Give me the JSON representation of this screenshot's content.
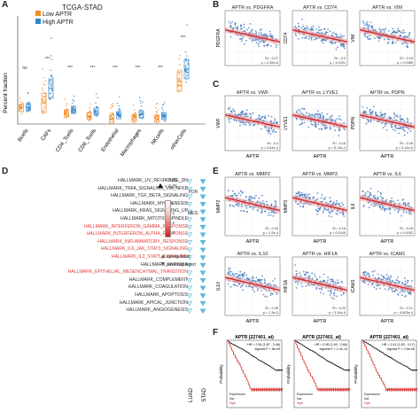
{
  "panel_labels": {
    "a": "A",
    "b": "B",
    "c": "C",
    "d": "D",
    "e": "E",
    "f": "F"
  },
  "panel_a": {
    "title": "TCGA-STAD",
    "legend": [
      {
        "label": "Low APTR",
        "color": "#f08a24"
      },
      {
        "label": "High APTR",
        "color": "#2f86c8"
      }
    ],
    "ylabel": "Percent fraction",
    "ns_label": "ns",
    "sig_label": "***",
    "categories": [
      "Bcells",
      "CAFs",
      "CD4_Tcells",
      "CD8_Tcells",
      "Endothelial",
      "Macrophages",
      "NKcells",
      "otherCells"
    ]
  },
  "panel_b": {
    "plots": [
      {
        "title": "APTR vs. PDGFRA",
        "ylabel": "PDGFRA",
        "stats": [
          "R= -0.27",
          "p = 2.35e-6"
        ]
      },
      {
        "title": "APTR vs. CD74",
        "ylabel": "CD74",
        "stats": [
          "R= -0.2",
          "p = 3.0291"
        ]
      },
      {
        "title": "APTR vs. VIM",
        "ylabel": "VIM",
        "stats": [
          "R= -0.18",
          "p = 0.0385"
        ]
      }
    ]
  },
  "panel_c": {
    "plots": [
      {
        "title": "APTR vs. VWF",
        "ylabel": "VWF",
        "stats": [
          "R= -0.2",
          "p = 3.64e-4"
        ]
      },
      {
        "title": "APTR vs. LYVE1",
        "ylabel": "LYVE1",
        "stats": [
          "R= -0.16",
          "p = 5.13e-4"
        ]
      },
      {
        "title": "APTR vs. PDPN",
        "ylabel": "PDPN",
        "stats": [
          "R= -0.26",
          "p = 0.14e-6"
        ]
      }
    ],
    "xlabel": "APTR"
  },
  "panel_d": {
    "gene_sets": [
      {
        "name": "HALLMARK_UV_RESPONSE_DN",
        "color": "dark"
      },
      {
        "name": "HALLMARK_TNFA_SIGNALING_VIA_NFKB",
        "color": "dark"
      },
      {
        "name": "HALLMARK_TGF_BETA_SIGNALING",
        "color": "dark"
      },
      {
        "name": "HALLMARK_MYOGENESIS",
        "color": "dark"
      },
      {
        "name": "HALLMARK_KRAS_SIGNALING_UP",
        "color": "dark"
      },
      {
        "name": "HALLMARK_MITOTIC_SPINDLE",
        "color": "dark"
      },
      {
        "name": "HALLMARK_INTERFERON_GAMMA_RESPONSE",
        "color": "red"
      },
      {
        "name": "HALLMARK_INTERFERON_ALPHA_RESPONSE",
        "color": "red"
      },
      {
        "name": "HALLMARK_INFLAMMATORY_RESPONSE",
        "color": "red"
      },
      {
        "name": "HALLMARK_IL6_JAK_STAT3_SIGNALING",
        "color": "red"
      },
      {
        "name": "HALLMARK_IL2_STAT5_SIGNALING",
        "color": "red"
      },
      {
        "name": "HALLMARK_HYPOXIA",
        "color": "dark"
      },
      {
        "name": "HALLMARK_EPITHELIAL_MESENCHYMAL_TRANSITION",
        "color": "red"
      },
      {
        "name": "HALLMARK_COMPLEMENT",
        "color": "dark"
      },
      {
        "name": "HALLMARK_COAGULATION",
        "color": "dark"
      },
      {
        "name": "HALLMARK_APOPTOSIS",
        "color": "dark"
      },
      {
        "name": "HALLMARK_APICAL_JUNCTION",
        "color": "dark"
      },
      {
        "name": "HALLMARK_ANGIOGENESIS",
        "color": "dark"
      }
    ],
    "columns": [
      "LUAD",
      "STAD"
    ],
    "fdr_title": "FDR",
    "fdr_items": [
      "> 0.05",
      "< 0.05"
    ],
    "nes_title": "NES",
    "nes_ticks": [
      "0",
      "-1",
      "-2",
      "-3"
    ],
    "direction_items": [
      "upregulated",
      "downregulated"
    ]
  },
  "panel_e": {
    "plots": [
      {
        "title": "APTR vs. MMP2",
        "ylabel": "MMP2",
        "stats": [
          "R= -0.34",
          "p = 1.2e-4"
        ]
      },
      {
        "title": "APTR vs. MMP3",
        "ylabel": "MMP3",
        "stats": [
          "R= -0.16",
          "p = 0.0245"
        ]
      },
      {
        "title": "APTR vs. IL6",
        "ylabel": "IL6",
        "stats": [
          "R= -0.18",
          "p = 0.0052"
        ]
      },
      {
        "title": "APTR vs. IL10",
        "ylabel": "IL10",
        "stats": [
          "R= -0.26",
          "p = 1.3e-5"
        ]
      },
      {
        "title": "APTR vs. HIF1A",
        "ylabel": "HIF1A",
        "stats": [
          "R= -0.23",
          "p = 3.16e-5"
        ]
      },
      {
        "title": "APTR vs. ICAM1",
        "ylabel": "ICAM1",
        "stats": [
          "R= -0.21",
          "p = 4.603e-4"
        ]
      }
    ],
    "xlabel": "APTR"
  },
  "panel_f": {
    "plots": [
      {
        "title": "APTR (227401_at)",
        "ylabel": "Probability",
        "stats": [
          "HR = 2.54 (1.87 - 3.46)",
          "logrank P = 6e-09"
        ],
        "legend": [
          "Expression",
          "low",
          "high"
        ]
      },
      {
        "title": "APTR (227401_at)",
        "ylabel": "Probability",
        "stats": [
          "HR = 2.06 (1.69 - 2.66)",
          "logrank P = 1.4e-14"
        ],
        "legend": [
          "Expression",
          "low",
          "high"
        ]
      },
      {
        "title": "APTR (227401_at)",
        "ylabel": "Probability",
        "stats": [
          "HR = 2.41 (1.83 - 3.17)",
          "logrank P = 2.6e-06"
        ],
        "legend": [
          "Expression",
          "low",
          "high"
        ]
      }
    ]
  },
  "colors": {
    "low": "#f08a24",
    "high": "#2f86c8",
    "fit": "#d62828",
    "scatter": "#3a72b8",
    "km_high": "#d62828",
    "km_low": "#111111",
    "sig": "#3fa7c9"
  }
}
